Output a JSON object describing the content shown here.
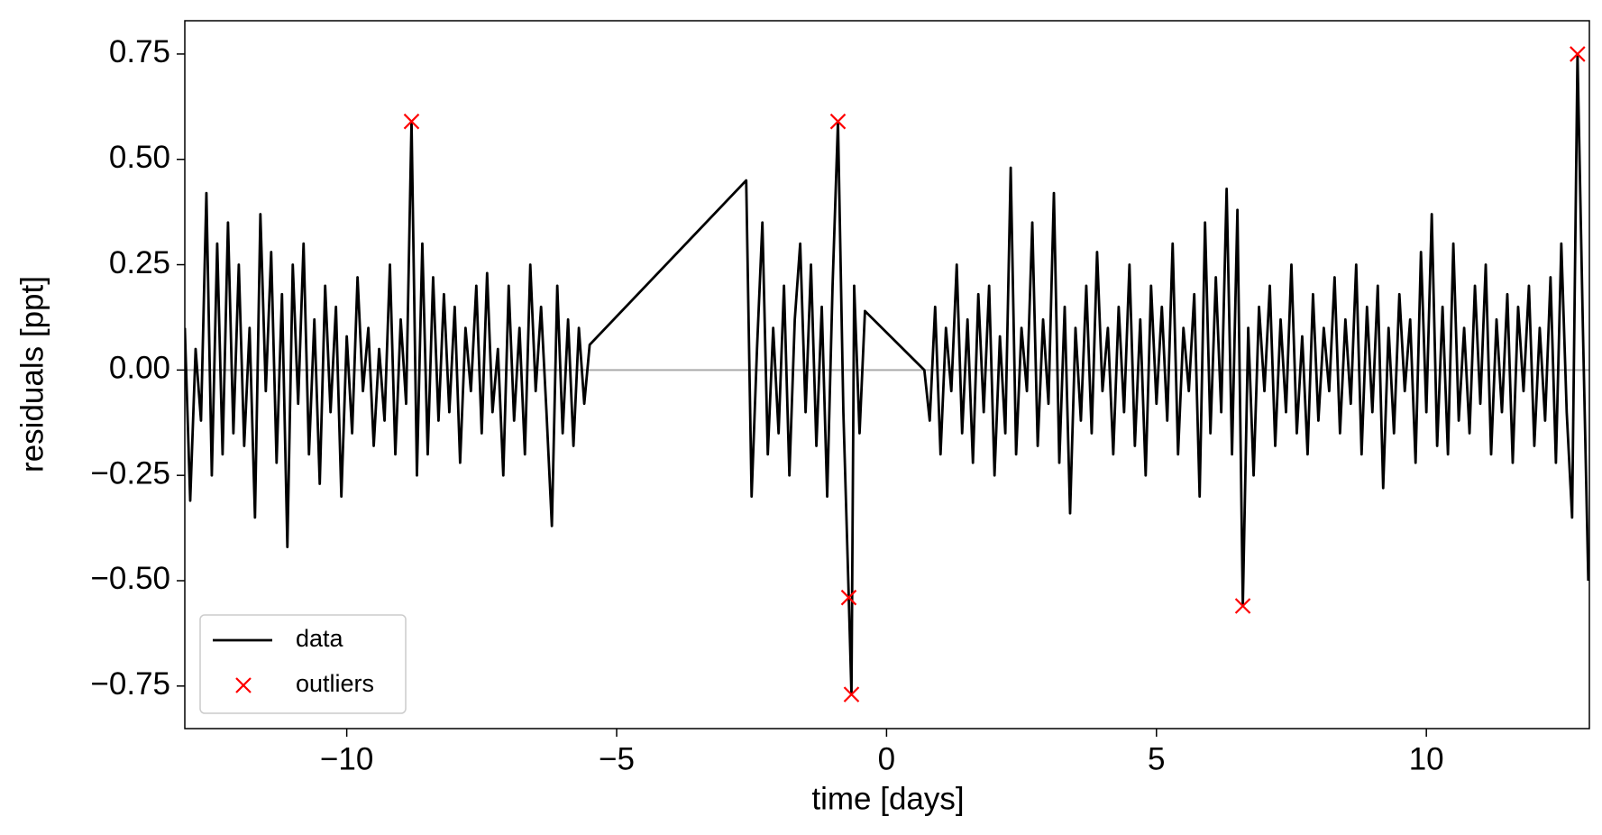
{
  "chart_data": {
    "type": "line",
    "xlabel": "time [days]",
    "ylabel": "residuals [ppt]",
    "xlim": [
      -13,
      13.02
    ],
    "ylim": [
      -0.851,
      0.829
    ],
    "xticks": [
      {
        "value": -10,
        "label": "−10"
      },
      {
        "value": -5,
        "label": "−5"
      },
      0,
      5,
      10
    ],
    "yticks": [
      {
        "value": 0.75,
        "label": "0.75"
      },
      {
        "value": 0.5,
        "label": "0.50"
      },
      {
        "value": 0.25,
        "label": "0.25"
      },
      {
        "value": 0,
        "label": "0.00"
      },
      {
        "value": -0.25,
        "label": "−0.25"
      },
      {
        "value": -0.5,
        "label": "−0.50"
      },
      {
        "value": -0.75,
        "label": "−0.75"
      }
    ],
    "axhline": 0,
    "axhline_color": "#aaaaaa",
    "legend": "lower left",
    "series": [
      {
        "name": "data",
        "color": "#000000",
        "kind": "line",
        "x": [
          -13.0,
          -12.9,
          -12.8,
          -12.7,
          -12.6,
          -12.5,
          -12.4,
          -12.3,
          -12.2,
          -12.1,
          -12.0,
          -11.9,
          -11.8,
          -11.7,
          -11.6,
          -11.5,
          -11.4,
          -11.3,
          -11.2,
          -11.1,
          -11.0,
          -10.9,
          -10.8,
          -10.7,
          -10.6,
          -10.5,
          -10.4,
          -10.3,
          -10.2,
          -10.1,
          -10.0,
          -9.9,
          -9.8,
          -9.7,
          -9.6,
          -9.5,
          -9.4,
          -9.3,
          -9.2,
          -9.1,
          -9.0,
          -8.9,
          -8.8,
          -8.7,
          -8.6,
          -8.5,
          -8.4,
          -8.3,
          -8.2,
          -8.1,
          -8.0,
          -7.9,
          -7.8,
          -7.7,
          -7.6,
          -7.5,
          -7.4,
          -7.3,
          -7.2,
          -7.1,
          -7.0,
          -6.9,
          -6.8,
          -6.7,
          -6.6,
          -6.5,
          -6.4,
          -6.3,
          -6.2,
          -6.1,
          -6.0,
          -5.9,
          -5.8,
          -5.7,
          -5.6,
          -5.5,
          -2.6,
          -2.5,
          -2.4,
          -2.3,
          -2.2,
          -2.1,
          -2.0,
          -1.9,
          -1.8,
          -1.7,
          -1.6,
          -1.5,
          -1.4,
          -1.3,
          -1.2,
          -1.1,
          -1.0,
          -0.9,
          -0.8,
          -0.7,
          -0.65,
          -0.6,
          -0.5,
          -0.4,
          0.7,
          0.8,
          0.9,
          1.0,
          1.1,
          1.2,
          1.3,
          1.4,
          1.5,
          1.6,
          1.7,
          1.8,
          1.9,
          2.0,
          2.1,
          2.2,
          2.3,
          2.4,
          2.5,
          2.6,
          2.7,
          2.8,
          2.9,
          3.0,
          3.1,
          3.2,
          3.3,
          3.4,
          3.5,
          3.6,
          3.7,
          3.8,
          3.9,
          4.0,
          4.1,
          4.2,
          4.3,
          4.4,
          4.5,
          4.6,
          4.7,
          4.8,
          4.9,
          5.0,
          5.1,
          5.2,
          5.3,
          5.4,
          5.5,
          5.6,
          5.7,
          5.8,
          5.9,
          6.0,
          6.1,
          6.2,
          6.3,
          6.4,
          6.5,
          6.6,
          6.7,
          6.8,
          6.9,
          7.0,
          7.1,
          7.2,
          7.3,
          7.4,
          7.5,
          7.6,
          7.7,
          7.8,
          7.9,
          8.0,
          8.1,
          8.2,
          8.3,
          8.4,
          8.5,
          8.6,
          8.7,
          8.8,
          8.9,
          9.0,
          9.1,
          9.2,
          9.3,
          9.4,
          9.5,
          9.6,
          9.7,
          9.8,
          9.9,
          10.0,
          10.1,
          10.2,
          10.3,
          10.4,
          10.5,
          10.6,
          10.7,
          10.8,
          10.9,
          11.0,
          11.1,
          11.2,
          11.3,
          11.4,
          11.5,
          11.6,
          11.7,
          11.8,
          11.9,
          12.0,
          12.1,
          12.2,
          12.3,
          12.4,
          12.5,
          12.6,
          12.7,
          12.8,
          12.9,
          13.0
        ],
        "values": [
          0.1,
          -0.31,
          0.05,
          -0.12,
          0.42,
          -0.25,
          0.3,
          -0.2,
          0.35,
          -0.15,
          0.25,
          -0.18,
          0.1,
          -0.35,
          0.37,
          -0.05,
          0.28,
          -0.22,
          0.18,
          -0.42,
          0.25,
          -0.08,
          0.3,
          -0.2,
          0.12,
          -0.27,
          0.2,
          -0.1,
          0.15,
          -0.3,
          0.08,
          -0.15,
          0.22,
          -0.05,
          0.1,
          -0.18,
          0.05,
          -0.12,
          0.25,
          -0.2,
          0.12,
          -0.08,
          0.59,
          -0.25,
          0.3,
          -0.2,
          0.22,
          -0.12,
          0.18,
          -0.1,
          0.15,
          -0.22,
          0.1,
          -0.05,
          0.2,
          -0.15,
          0.23,
          -0.1,
          0.05,
          -0.25,
          0.2,
          -0.12,
          0.1,
          -0.2,
          0.25,
          -0.05,
          0.15,
          -0.1,
          -0.37,
          0.2,
          -0.15,
          0.12,
          -0.18,
          0.1,
          -0.08,
          0.06,
          0.45,
          -0.3,
          0.05,
          0.35,
          -0.2,
          0.1,
          -0.15,
          0.2,
          -0.25,
          0.12,
          0.3,
          -0.1,
          0.25,
          -0.18,
          0.15,
          -0.3,
          0.2,
          0.59,
          -0.1,
          -0.54,
          -0.77,
          0.2,
          -0.15,
          0.14,
          0.0,
          -0.12,
          0.15,
          -0.2,
          0.1,
          -0.05,
          0.25,
          -0.15,
          0.12,
          -0.22,
          0.18,
          -0.1,
          0.2,
          -0.25,
          0.08,
          -0.15,
          0.48,
          -0.2,
          0.1,
          -0.05,
          0.35,
          -0.18,
          0.12,
          -0.08,
          0.42,
          -0.22,
          0.15,
          -0.34,
          0.1,
          -0.12,
          0.2,
          -0.15,
          0.28,
          -0.05,
          0.1,
          -0.2,
          0.15,
          -0.1,
          0.25,
          -0.18,
          0.12,
          -0.25,
          0.2,
          -0.08,
          0.15,
          -0.12,
          0.3,
          -0.2,
          0.1,
          -0.05,
          0.18,
          -0.3,
          0.35,
          -0.15,
          0.22,
          -0.1,
          0.43,
          -0.2,
          0.38,
          -0.56,
          0.1,
          -0.25,
          0.15,
          -0.05,
          0.2,
          -0.18,
          0.12,
          -0.1,
          0.25,
          -0.15,
          0.08,
          -0.2,
          0.18,
          -0.12,
          0.1,
          -0.05,
          0.22,
          -0.15,
          0.12,
          -0.08,
          0.25,
          -0.2,
          0.15,
          -0.1,
          0.2,
          -0.28,
          0.1,
          -0.15,
          0.18,
          -0.05,
          0.12,
          -0.22,
          0.28,
          -0.1,
          0.37,
          -0.18,
          0.15,
          -0.2,
          0.3,
          -0.12,
          0.1,
          -0.15,
          0.2,
          -0.08,
          0.25,
          -0.2,
          0.12,
          -0.1,
          0.18,
          -0.22,
          0.15,
          -0.05,
          0.2,
          -0.18,
          0.1,
          -0.12,
          0.22,
          -0.22,
          0.3,
          -0.1,
          -0.35,
          0.75,
          0.1,
          -0.5
        ]
      },
      {
        "name": "outliers",
        "color": "#ff0000",
        "kind": "scatter",
        "marker": "x",
        "x": [
          -8.8,
          -0.9,
          -0.7,
          -0.65,
          6.6,
          12.8
        ],
        "values": [
          0.59,
          0.59,
          -0.54,
          -0.77,
          -0.56,
          0.75
        ]
      }
    ]
  }
}
